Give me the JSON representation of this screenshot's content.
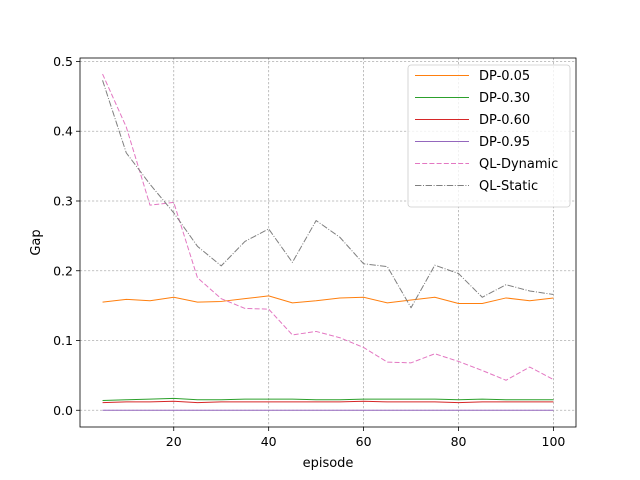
{
  "chart_data": {
    "type": "line",
    "title": "",
    "xlabel": "episode",
    "ylabel": "Gap",
    "xlim": [
      0.25,
      104.75
    ],
    "ylim": [
      -0.024,
      0.505
    ],
    "xticks": [
      20,
      40,
      60,
      80,
      100
    ],
    "yticks": [
      0.0,
      0.1,
      0.2,
      0.3,
      0.4,
      0.5
    ],
    "ytick_labels": [
      "0.0",
      "0.1",
      "0.2",
      "0.3",
      "0.4",
      "0.5"
    ],
    "grid": true,
    "legend_position": "top-right",
    "x": [
      5,
      10,
      15,
      20,
      25,
      30,
      35,
      40,
      45,
      50,
      55,
      60,
      65,
      70,
      75,
      80,
      85,
      90,
      95,
      100
    ],
    "series": [
      {
        "name": "DP-0.05",
        "color": "#ff7f0e",
        "style": "solid",
        "values": [
          0.155,
          0.159,
          0.157,
          0.162,
          0.155,
          0.156,
          0.16,
          0.164,
          0.154,
          0.157,
          0.161,
          0.162,
          0.154,
          0.158,
          0.162,
          0.153,
          0.153,
          0.161,
          0.157,
          0.161
        ]
      },
      {
        "name": "DP-0.30",
        "color": "#2ca02c",
        "style": "solid",
        "values": [
          0.014,
          0.015,
          0.016,
          0.017,
          0.015,
          0.015,
          0.016,
          0.016,
          0.016,
          0.015,
          0.015,
          0.016,
          0.016,
          0.016,
          0.016,
          0.015,
          0.016,
          0.015,
          0.015,
          0.015
        ]
      },
      {
        "name": "DP-0.60",
        "color": "#d62728",
        "style": "solid",
        "values": [
          0.011,
          0.012,
          0.012,
          0.013,
          0.011,
          0.012,
          0.012,
          0.012,
          0.012,
          0.012,
          0.012,
          0.013,
          0.012,
          0.012,
          0.012,
          0.011,
          0.012,
          0.012,
          0.012,
          0.012
        ]
      },
      {
        "name": "DP-0.95",
        "color": "#9467bd",
        "style": "solid",
        "values": [
          0.0,
          0.0,
          0.0,
          0.0,
          0.0,
          0.0,
          0.0,
          0.0,
          0.0,
          0.0,
          0.0,
          0.0,
          0.0,
          0.0,
          0.0,
          0.0,
          0.0,
          0.0,
          0.0,
          0.0
        ]
      },
      {
        "name": "QL-Dynamic",
        "color": "#e377c2",
        "style": "dashed",
        "values": [
          0.482,
          0.406,
          0.294,
          0.298,
          0.19,
          0.16,
          0.146,
          0.145,
          0.108,
          0.113,
          0.104,
          0.09,
          0.069,
          0.068,
          0.081,
          0.07,
          0.057,
          0.043,
          0.062,
          0.044
        ]
      },
      {
        "name": "QL-Static",
        "color": "#7f7f7f",
        "style": "dashdot",
        "values": [
          0.473,
          0.369,
          0.324,
          0.283,
          0.235,
          0.207,
          0.242,
          0.26,
          0.212,
          0.272,
          0.248,
          0.21,
          0.206,
          0.147,
          0.208,
          0.196,
          0.162,
          0.18,
          0.171,
          0.166
        ]
      }
    ]
  }
}
